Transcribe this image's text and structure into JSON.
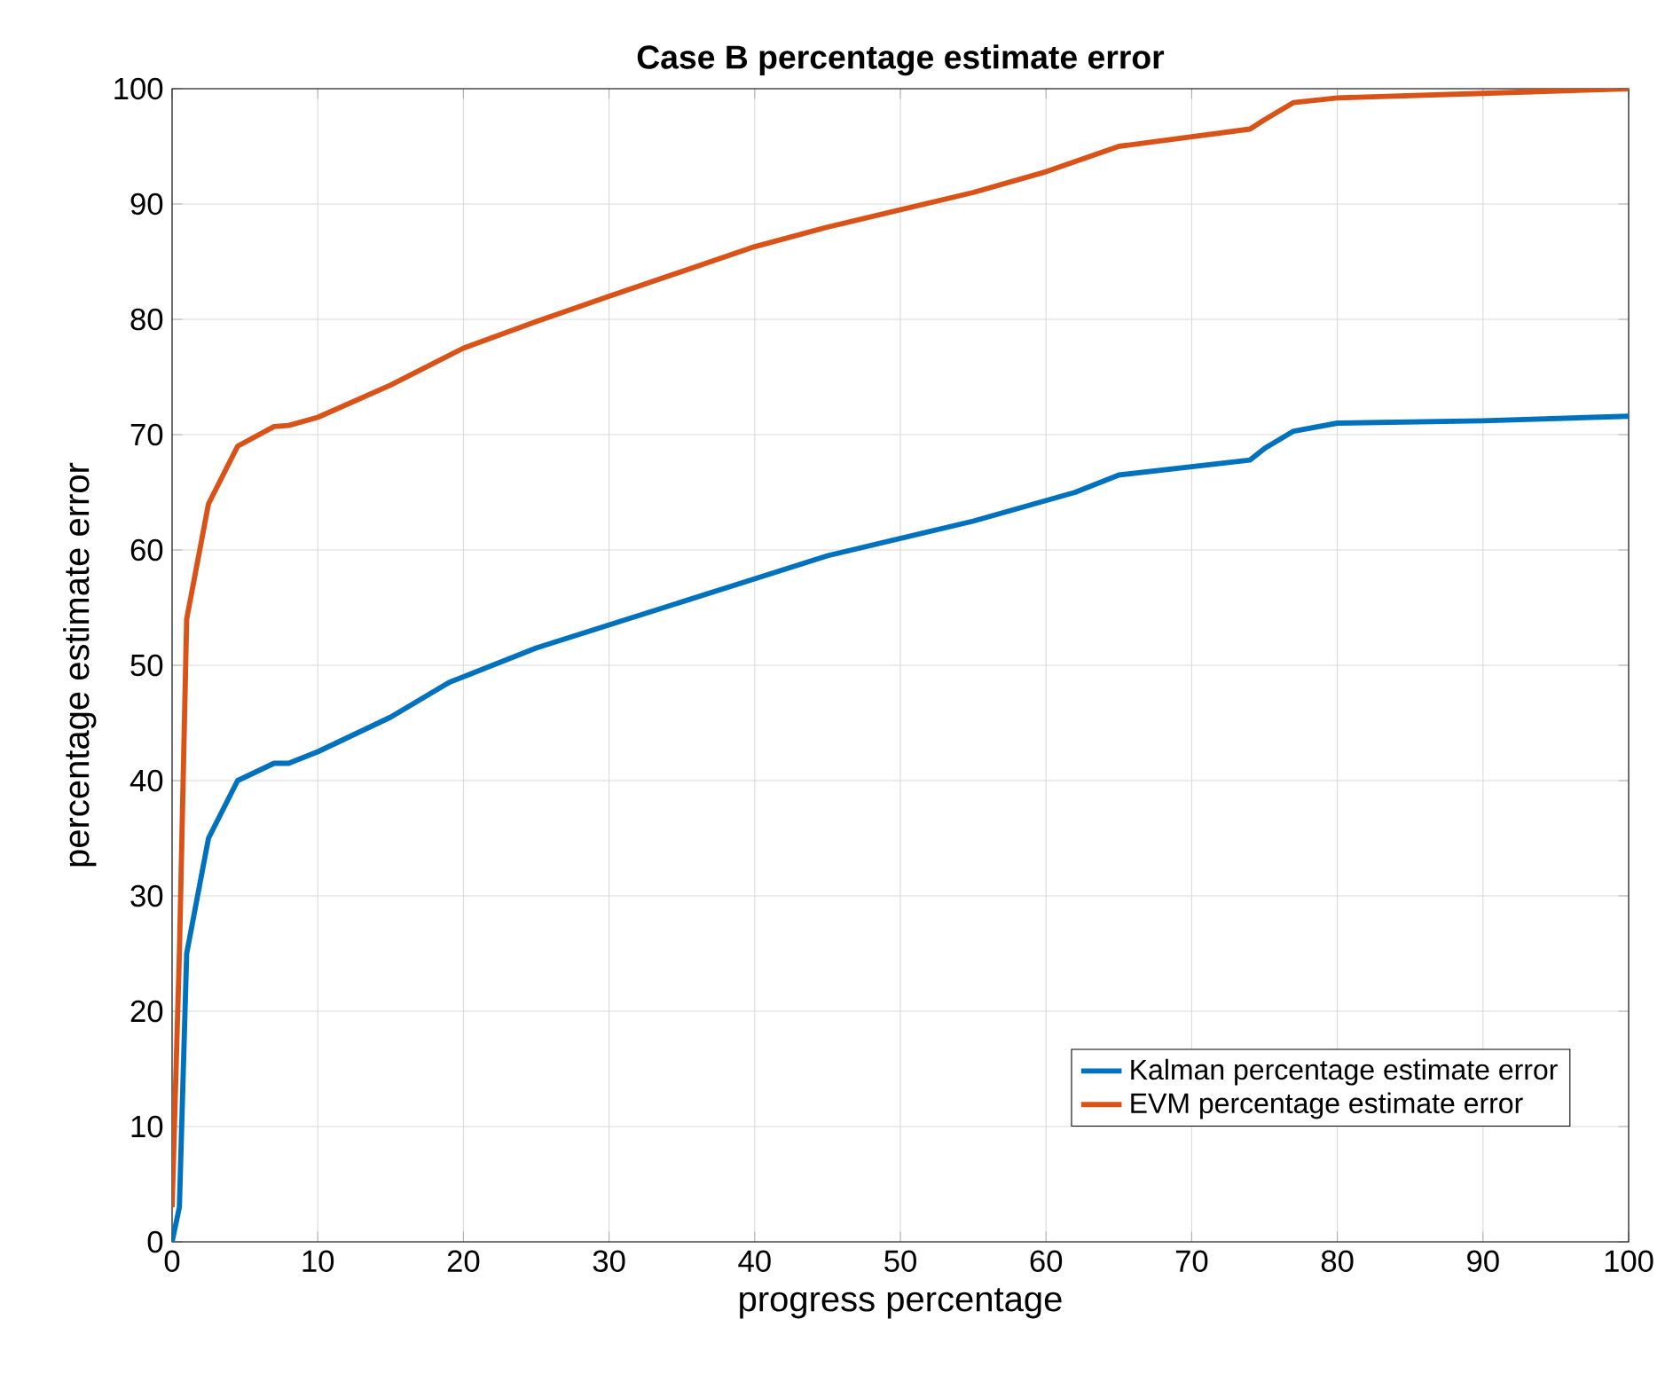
{
  "chart_data": {
    "type": "line",
    "title": "Case B percentage estimate error",
    "xlabel": "progress percentage",
    "ylabel": "percentage estimate error",
    "xlim": [
      0,
      100
    ],
    "ylim": [
      0,
      100
    ],
    "xticks": [
      0,
      10,
      20,
      30,
      40,
      50,
      60,
      70,
      80,
      90,
      100
    ],
    "yticks": [
      0,
      10,
      20,
      30,
      40,
      50,
      60,
      70,
      80,
      90,
      100
    ],
    "grid": true,
    "legend": "bottom right",
    "line_style": "solid",
    "marker": "none",
    "series": [
      {
        "name": "Kalman percentage estimate error",
        "color": "#0072bd",
        "x": [
          0,
          0.5,
          1,
          2.5,
          4.5,
          7,
          8,
          10,
          15,
          19,
          25,
          30,
          40,
          45,
          50,
          55,
          62,
          65,
          74,
          75,
          77,
          80,
          90,
          100
        ],
        "values": [
          0,
          3,
          25,
          35,
          40,
          41.5,
          41.5,
          42.5,
          45.5,
          48.5,
          51.5,
          53.5,
          57.5,
          59.5,
          61,
          62.5,
          65,
          66.5,
          67.8,
          68.8,
          70.3,
          71,
          71.2,
          71.6
        ]
      },
      {
        "name": "EVM percentage estimate error",
        "color": "#d95319",
        "x": [
          0,
          0.5,
          1,
          2.5,
          4.5,
          7,
          8,
          10,
          15,
          20,
          25,
          30,
          40,
          45,
          50,
          55,
          60,
          65,
          74,
          75,
          77,
          80,
          90,
          100
        ],
        "values": [
          3,
          25,
          54,
          64,
          69,
          70.7,
          70.8,
          71.5,
          74.3,
          77.5,
          79.8,
          82,
          86.3,
          88,
          89.5,
          91,
          92.8,
          95,
          96.5,
          97.3,
          98.8,
          99.2,
          99.6,
          100
        ]
      }
    ]
  }
}
